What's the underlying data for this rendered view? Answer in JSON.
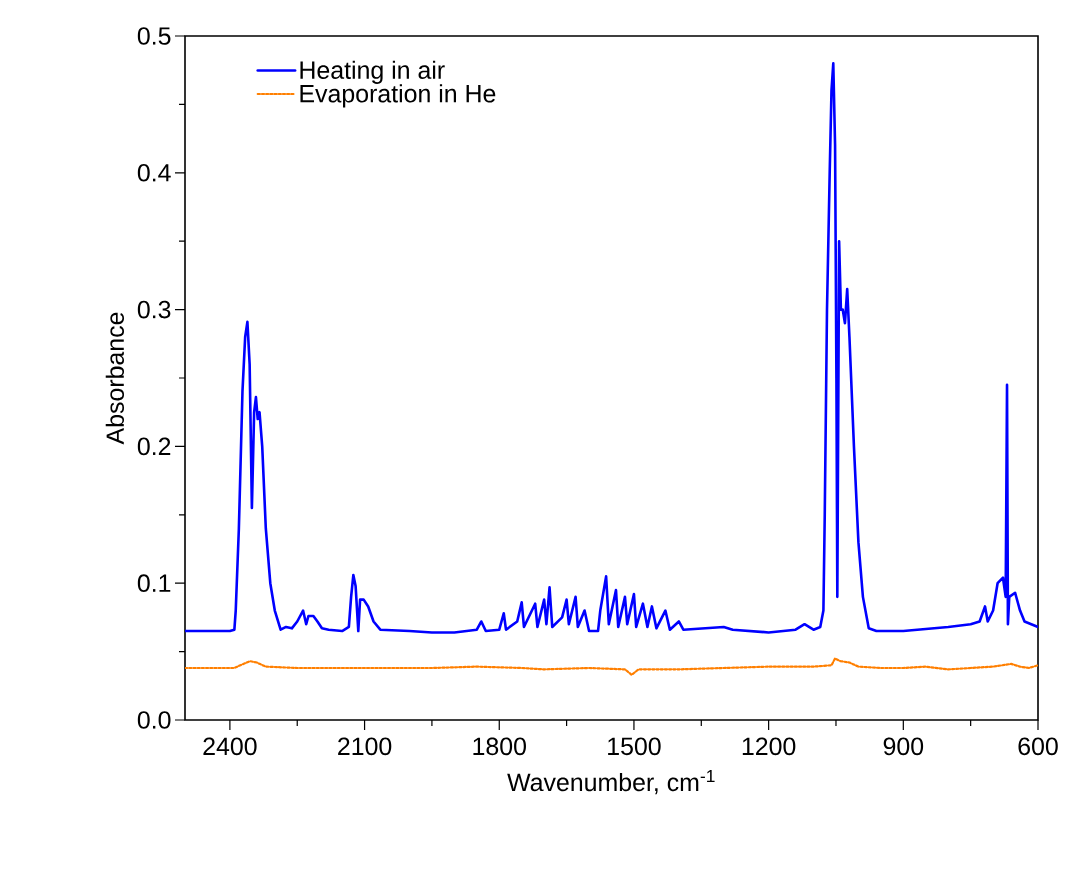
{
  "chart_data": {
    "type": "line",
    "xlabel": "Wavenumber, cm$^{-1}$",
    "ylabel": "Absorbance",
    "xlim": [
      2500,
      600
    ],
    "ylim": [
      0,
      0.5
    ],
    "xticks": [
      2400,
      2100,
      1800,
      1500,
      1200,
      900,
      600
    ],
    "yticks": [
      {
        "value": 0,
        "label": "0.0"
      },
      {
        "value": 0.1,
        "label": "0.1"
      },
      {
        "value": 0.2,
        "label": "0.2"
      },
      {
        "value": 0.3,
        "label": "0.3"
      },
      {
        "value": 0.4,
        "label": "0.4"
      },
      {
        "value": 0.5,
        "label": "0.5"
      }
    ],
    "grid": false,
    "legend": "top left",
    "series": [
      {
        "name": "Heating in air",
        "color": "#0000ff",
        "line_style": "solid",
        "x": [
          2500,
          2400,
          2390,
          2387,
          2380,
          2372,
          2366,
          2361,
          2356,
          2351,
          2346,
          2342,
          2338,
          2334,
          2328,
          2320,
          2310,
          2300,
          2287,
          2275,
          2262,
          2250,
          2237,
          2230,
          2225,
          2214,
          2205,
          2195,
          2180,
          2150,
          2135,
          2130,
          2125,
          2120,
          2114,
          2110,
          2102,
          2092,
          2080,
          2065,
          2000,
          1950,
          1900,
          1850,
          1840,
          1830,
          1800,
          1790,
          1785,
          1760,
          1750,
          1745,
          1720,
          1715,
          1700,
          1695,
          1688,
          1682,
          1660,
          1650,
          1645,
          1630,
          1625,
          1610,
          1600,
          1580,
          1575,
          1562,
          1556,
          1540,
          1535,
          1520,
          1515,
          1500,
          1495,
          1480,
          1470,
          1460,
          1450,
          1430,
          1420,
          1400,
          1390,
          1300,
          1280,
          1200,
          1140,
          1120,
          1100,
          1085,
          1078,
          1075,
          1070,
          1064,
          1060,
          1056,
          1052,
          1049,
          1047,
          1043,
          1039,
          1035,
          1030,
          1025,
          1020,
          1010,
          1000,
          990,
          977,
          960,
          900,
          800,
          750,
          730,
          718,
          712,
          700,
          690,
          678,
          672,
          669,
          667,
          664,
          651,
          640,
          630,
          615,
          600
        ],
        "values": [
          0.065,
          0.065,
          0.066,
          0.08,
          0.14,
          0.24,
          0.28,
          0.291,
          0.26,
          0.155,
          0.225,
          0.236,
          0.22,
          0.225,
          0.2,
          0.14,
          0.1,
          0.08,
          0.066,
          0.068,
          0.067,
          0.072,
          0.08,
          0.07,
          0.076,
          0.076,
          0.072,
          0.067,
          0.066,
          0.065,
          0.068,
          0.09,
          0.106,
          0.098,
          0.065,
          0.088,
          0.088,
          0.083,
          0.072,
          0.066,
          0.065,
          0.064,
          0.064,
          0.066,
          0.072,
          0.065,
          0.066,
          0.078,
          0.066,
          0.072,
          0.086,
          0.068,
          0.085,
          0.068,
          0.088,
          0.07,
          0.097,
          0.068,
          0.075,
          0.088,
          0.07,
          0.09,
          0.068,
          0.08,
          0.065,
          0.065,
          0.08,
          0.105,
          0.07,
          0.095,
          0.068,
          0.09,
          0.07,
          0.092,
          0.068,
          0.085,
          0.068,
          0.083,
          0.067,
          0.08,
          0.066,
          0.072,
          0.066,
          0.068,
          0.066,
          0.064,
          0.066,
          0.07,
          0.066,
          0.068,
          0.08,
          0.15,
          0.3,
          0.4,
          0.46,
          0.48,
          0.42,
          0.25,
          0.09,
          0.35,
          0.3,
          0.3,
          0.29,
          0.315,
          0.28,
          0.2,
          0.13,
          0.09,
          0.067,
          0.065,
          0.065,
          0.068,
          0.07,
          0.072,
          0.083,
          0.072,
          0.08,
          0.1,
          0.104,
          0.09,
          0.245,
          0.07,
          0.09,
          0.093,
          0.08,
          0.072,
          0.07,
          0.068
        ]
      },
      {
        "name": "Evaporation in He",
        "color": "#ff7f00",
        "line_style": "dotted",
        "x": [
          2500,
          2420,
          2390,
          2370,
          2355,
          2340,
          2320,
          2250,
          2150,
          2050,
          1950,
          1850,
          1750,
          1700,
          1600,
          1520,
          1505,
          1490,
          1400,
          1300,
          1200,
          1100,
          1060,
          1052,
          1040,
          1020,
          1000,
          950,
          900,
          850,
          800,
          750,
          700,
          660,
          640,
          620,
          600
        ],
        "values": [
          0.038,
          0.038,
          0.038,
          0.041,
          0.043,
          0.042,
          0.039,
          0.038,
          0.038,
          0.038,
          0.038,
          0.039,
          0.038,
          0.037,
          0.038,
          0.037,
          0.033,
          0.037,
          0.037,
          0.038,
          0.039,
          0.039,
          0.04,
          0.045,
          0.043,
          0.042,
          0.039,
          0.038,
          0.038,
          0.039,
          0.037,
          0.038,
          0.039,
          0.041,
          0.039,
          0.038,
          0.04
        ]
      }
    ]
  }
}
